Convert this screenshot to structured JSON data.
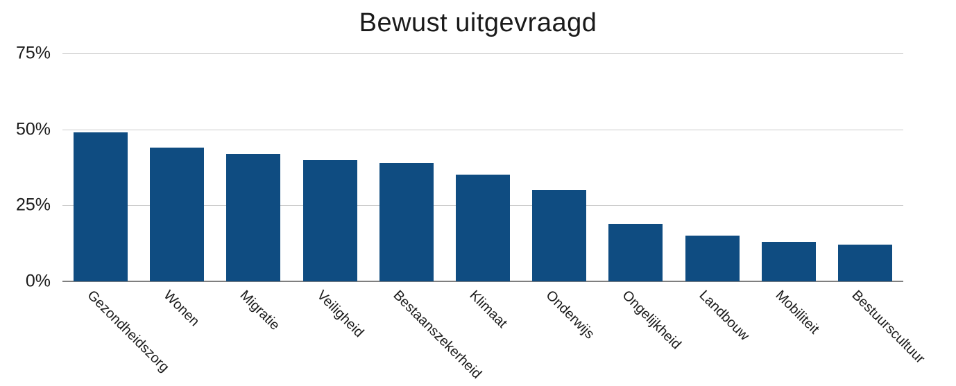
{
  "page": {
    "background": "#ffffff"
  },
  "header": {
    "title": "Bewust uitgevraagd"
  },
  "chart_data": {
    "type": "bar",
    "title": "Bewust uitgevraagd",
    "categories": [
      "Gezondheidszorg",
      "Wonen",
      "Migratie",
      "Veiligheid",
      "Bestaanszekerheid",
      "Klimaat",
      "Onderwijs",
      "Ongelijkheid",
      "Landbouw",
      "Mobiliteit",
      "Bestuurscultuur"
    ],
    "values": [
      49,
      44,
      42,
      40,
      39,
      35,
      30,
      19,
      15,
      13,
      12
    ],
    "unit": "%",
    "xlabel": "",
    "ylabel": "",
    "ylim": [
      0,
      75
    ],
    "y_ticks": [
      0,
      25,
      50,
      75
    ],
    "y_tick_labels": [
      "0%",
      "25%",
      "50%",
      "75%"
    ],
    "grid": true,
    "legend": false,
    "x_label_rotation_deg": 45,
    "bar_color": "#0F4C81",
    "grid_color": "#cccccc",
    "axis_color": "#7f7f7f",
    "text_color": "#1a1a1a"
  }
}
